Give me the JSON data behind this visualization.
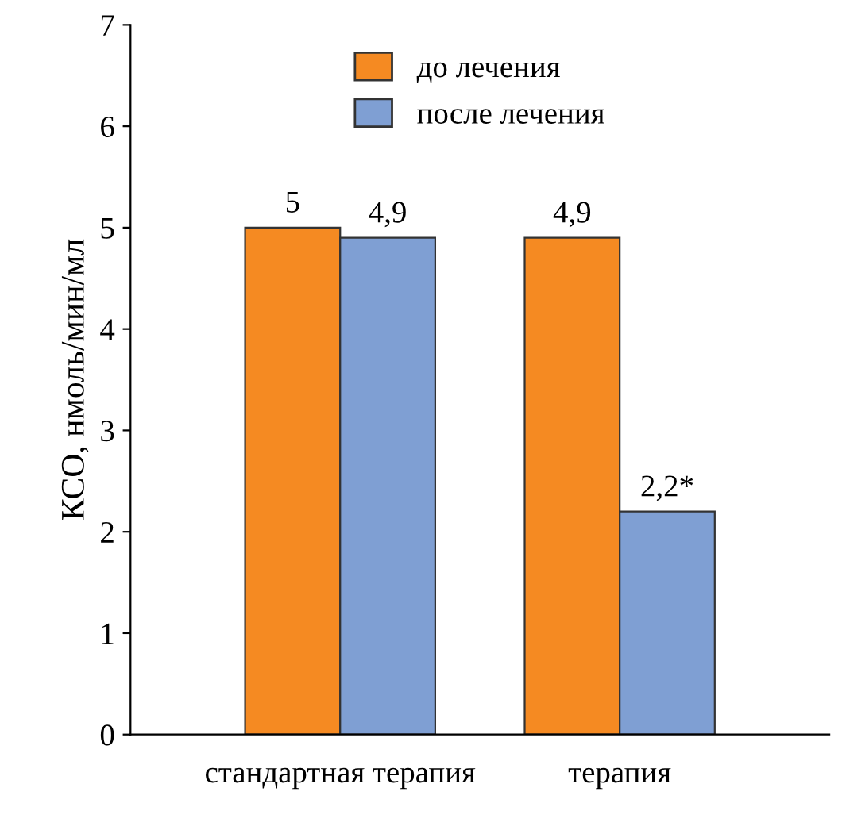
{
  "chart_data": {
    "type": "bar",
    "ylabel": "КСО, нмоль/мин/мл",
    "categories": [
      "стандартная терапия",
      "терапия"
    ],
    "series": [
      {
        "name": "до лечения",
        "color": "#f58a22",
        "values": [
          5,
          4.9
        ],
        "value_labels": [
          "5",
          "4,9"
        ]
      },
      {
        "name": "после лечения",
        "color": "#7f9fd3",
        "values": [
          4.9,
          2.2
        ],
        "value_labels": [
          "4,9",
          "2,2*"
        ]
      }
    ],
    "ylim": [
      0,
      7
    ],
    "yticks": [
      0,
      1,
      2,
      3,
      4,
      5,
      6,
      7
    ],
    "grid": false,
    "legend": "top"
  }
}
